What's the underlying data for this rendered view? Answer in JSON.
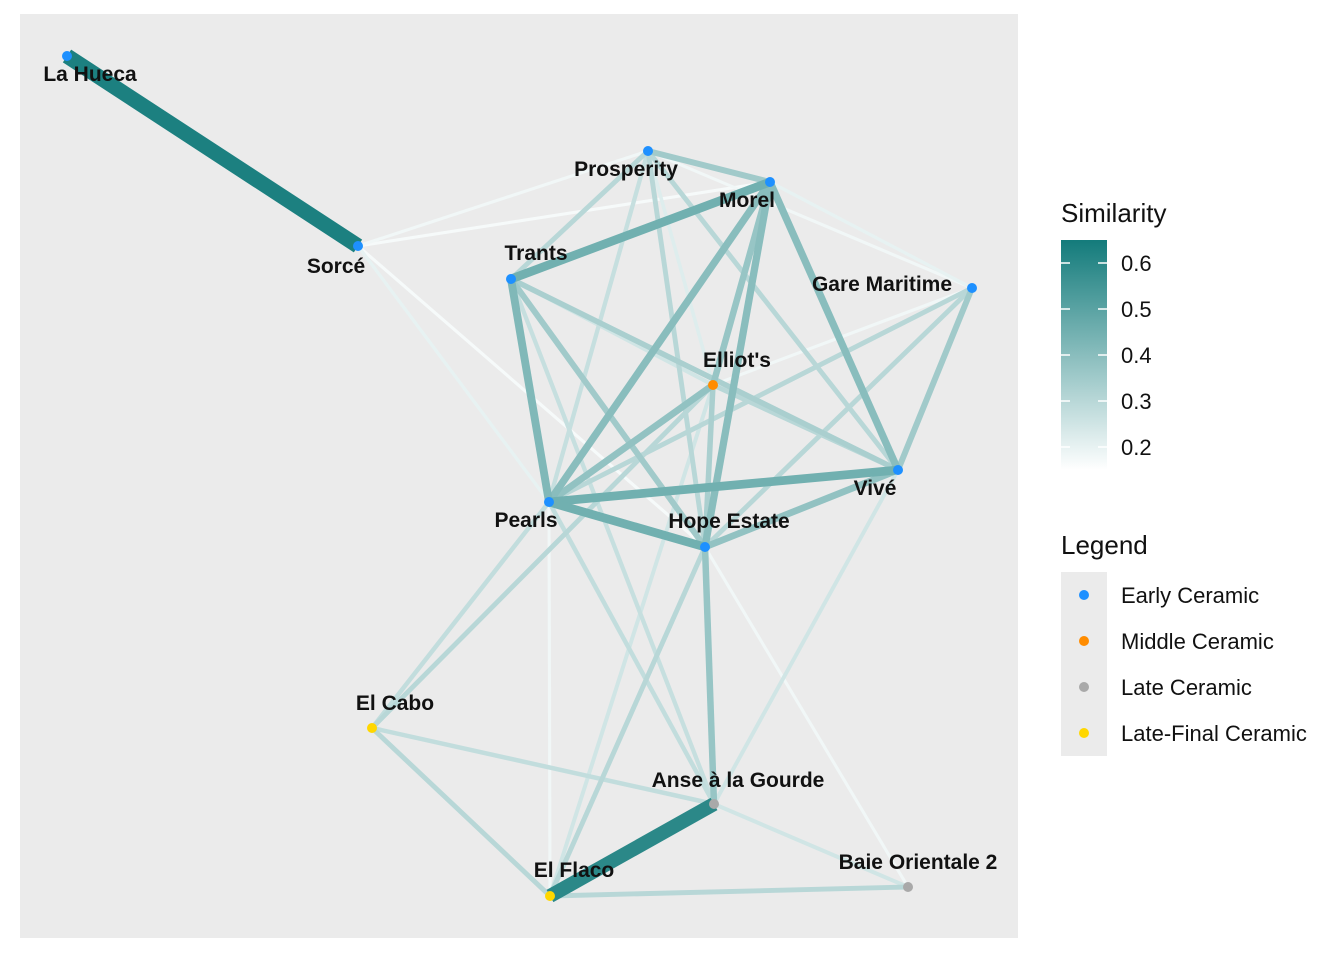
{
  "chart_data": {
    "type": "network",
    "colorbar": {
      "title": "Similarity",
      "ticks": [
        "0.6",
        "0.5",
        "0.4",
        "0.3",
        "0.2"
      ],
      "range": [
        0.15,
        0.65
      ],
      "color_low": "#ffffff",
      "color_high": "#137b7b"
    },
    "legend": {
      "title": "Legend",
      "items": [
        {
          "label": "Early Ceramic",
          "color": "#1e90ff"
        },
        {
          "label": "Middle Ceramic",
          "color": "#ff8c00"
        },
        {
          "label": "Late Ceramic",
          "color": "#a9a9a9"
        },
        {
          "label": "Late-Final Ceramic",
          "color": "#ffd700"
        }
      ]
    },
    "nodes": [
      {
        "id": "la_hueca",
        "label": "La Hueca",
        "period": "Early Ceramic"
      },
      {
        "id": "sorce",
        "label": "Sorcé",
        "period": "Early Ceramic"
      },
      {
        "id": "prosperity",
        "label": "Prosperity",
        "period": "Early Ceramic"
      },
      {
        "id": "morel",
        "label": "Morel",
        "period": "Early Ceramic"
      },
      {
        "id": "trants",
        "label": "Trants",
        "period": "Early Ceramic"
      },
      {
        "id": "gare_maritime",
        "label": "Gare Maritime",
        "period": "Early Ceramic"
      },
      {
        "id": "elliots",
        "label": "Elliot's",
        "period": "Middle Ceramic"
      },
      {
        "id": "vive",
        "label": "Vivé",
        "period": "Early Ceramic"
      },
      {
        "id": "pearls",
        "label": "Pearls",
        "period": "Early Ceramic"
      },
      {
        "id": "hope_estate",
        "label": "Hope Estate",
        "period": "Early Ceramic"
      },
      {
        "id": "el_cabo",
        "label": "El Cabo",
        "period": "Late-Final Ceramic"
      },
      {
        "id": "anse",
        "label": "Anse à la Gourde",
        "period": "Late Ceramic"
      },
      {
        "id": "baie",
        "label": "Baie Orientale 2",
        "period": "Late Ceramic"
      },
      {
        "id": "el_flaco",
        "label": "El Flaco",
        "period": "Late-Final Ceramic"
      }
    ],
    "edges": [
      {
        "from": "la_hueca",
        "to": "sorce",
        "similarity": 0.63
      },
      {
        "from": "el_flaco",
        "to": "anse",
        "similarity": 0.6
      },
      {
        "from": "sorce",
        "to": "prosperity",
        "similarity": 0.18
      },
      {
        "from": "sorce",
        "to": "morel",
        "similarity": 0.17
      },
      {
        "from": "sorce",
        "to": "pearls",
        "similarity": 0.2
      },
      {
        "from": "sorce",
        "to": "hope_estate",
        "similarity": 0.17
      },
      {
        "from": "prosperity",
        "to": "morel",
        "similarity": 0.35
      },
      {
        "from": "prosperity",
        "to": "trants",
        "similarity": 0.3
      },
      {
        "from": "prosperity",
        "to": "pearls",
        "similarity": 0.27
      },
      {
        "from": "prosperity",
        "to": "hope_estate",
        "similarity": 0.3
      },
      {
        "from": "prosperity",
        "to": "vive",
        "similarity": 0.3
      },
      {
        "from": "prosperity",
        "to": "elliots",
        "similarity": 0.22
      },
      {
        "from": "prosperity",
        "to": "gare_maritime",
        "similarity": 0.18
      },
      {
        "from": "morel",
        "to": "trants",
        "similarity": 0.45
      },
      {
        "from": "morel",
        "to": "pearls",
        "similarity": 0.4
      },
      {
        "from": "morel",
        "to": "hope_estate",
        "similarity": 0.4
      },
      {
        "from": "morel",
        "to": "vive",
        "similarity": 0.4
      },
      {
        "from": "morel",
        "to": "elliots",
        "similarity": 0.37
      },
      {
        "from": "morel",
        "to": "gare_maritime",
        "similarity": 0.2
      },
      {
        "from": "trants",
        "to": "pearls",
        "similarity": 0.42
      },
      {
        "from": "trants",
        "to": "hope_estate",
        "similarity": 0.35
      },
      {
        "from": "trants",
        "to": "vive",
        "similarity": 0.33
      },
      {
        "from": "trants",
        "to": "elliots",
        "similarity": 0.25
      },
      {
        "from": "trants",
        "to": "anse",
        "similarity": 0.27
      },
      {
        "from": "gare_maritime",
        "to": "vive",
        "similarity": 0.35
      },
      {
        "from": "gare_maritime",
        "to": "pearls",
        "similarity": 0.3
      },
      {
        "from": "gare_maritime",
        "to": "hope_estate",
        "similarity": 0.3
      },
      {
        "from": "gare_maritime",
        "to": "elliots",
        "similarity": 0.18
      },
      {
        "from": "elliots",
        "to": "pearls",
        "similarity": 0.38
      },
      {
        "from": "elliots",
        "to": "hope_estate",
        "similarity": 0.33
      },
      {
        "from": "elliots",
        "to": "vive",
        "similarity": 0.3
      },
      {
        "from": "elliots",
        "to": "el_cabo",
        "similarity": 0.3
      },
      {
        "from": "elliots",
        "to": "el_flaco",
        "similarity": 0.25
      },
      {
        "from": "vive",
        "to": "pearls",
        "similarity": 0.45
      },
      {
        "from": "vive",
        "to": "hope_estate",
        "similarity": 0.38
      },
      {
        "from": "vive",
        "to": "anse",
        "similarity": 0.25
      },
      {
        "from": "pearls",
        "to": "hope_estate",
        "similarity": 0.45
      },
      {
        "from": "pearls",
        "to": "el_cabo",
        "similarity": 0.28
      },
      {
        "from": "pearls",
        "to": "el_flaco",
        "similarity": 0.18
      },
      {
        "from": "pearls",
        "to": "anse",
        "similarity": 0.28
      },
      {
        "from": "hope_estate",
        "to": "anse",
        "similarity": 0.37
      },
      {
        "from": "hope_estate",
        "to": "el_flaco",
        "similarity": 0.3
      },
      {
        "from": "hope_estate",
        "to": "baie",
        "similarity": 0.18
      },
      {
        "from": "el_cabo",
        "to": "anse",
        "similarity": 0.28
      },
      {
        "from": "el_cabo",
        "to": "el_flaco",
        "similarity": 0.3
      },
      {
        "from": "anse",
        "to": "baie",
        "similarity": 0.25
      },
      {
        "from": "el_flaco",
        "to": "baie",
        "similarity": 0.3
      }
    ]
  }
}
